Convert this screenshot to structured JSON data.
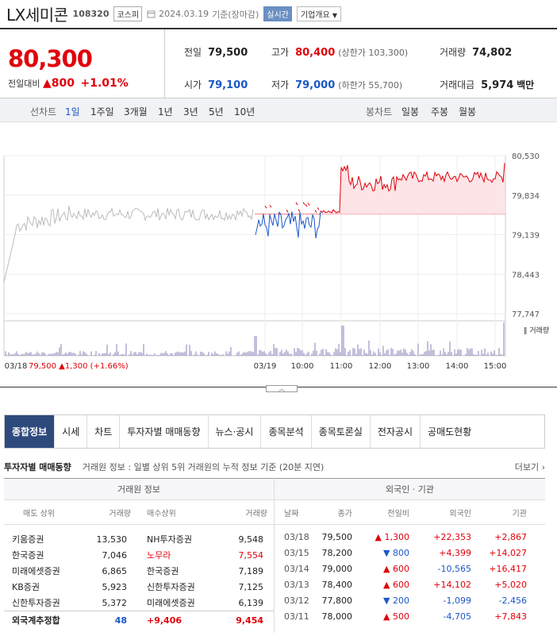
{
  "header": {
    "name": "LX세미콘",
    "code": "108320",
    "market": "코스피",
    "date": "2024.03.19",
    "basis": "기준(장마감)",
    "realtime": "실시간",
    "company_info": "기업개요"
  },
  "price": {
    "current": "80,300",
    "change_label": "전일대비",
    "change": "800",
    "change_pct": "+1.01%",
    "prev_label": "전일",
    "prev": "79,500",
    "high_label": "고가",
    "high": "80,400",
    "upper_limit": "(상한가 103,300)",
    "volume_label": "거래량",
    "volume": "74,802",
    "open_label": "시가",
    "open": "79,100",
    "low_label": "저가",
    "low": "79,000",
    "lower_limit": "(하한가 55,700)",
    "amount_label": "거래대금",
    "amount": "5,974",
    "amount_unit": "백만"
  },
  "toolbar": {
    "line_label": "선차트",
    "ranges": [
      "1일",
      "1주일",
      "3개월",
      "1년",
      "3년",
      "5년",
      "10년"
    ],
    "candle_label": "봉차트",
    "candles": [
      "일봉",
      "주봉",
      "월봉"
    ]
  },
  "chart_data": {
    "type": "line",
    "y_ticks": [
      "80,530",
      "79,834",
      "79,139",
      "78,443",
      "77,747"
    ],
    "ylim": [
      77747,
      80530
    ],
    "x_ticks": [
      "03/18",
      "03/19",
      "10:00",
      "11:00",
      "12:00",
      "13:00",
      "14:00",
      "15:00"
    ],
    "volume_label": "거래량",
    "prev_day": {
      "date": "03/18",
      "price": "79,500",
      "change": "▲1,300",
      "pct": "(+1.66%)"
    },
    "baseline": 79500,
    "colors": {
      "up": "#e0000a",
      "down": "#1a57c7",
      "prev": "#bbbbbb",
      "fill": "#fde4e6",
      "volume": "#8a7fb8"
    }
  },
  "tabs": [
    "종합정보",
    "시세",
    "차트",
    "투자자별 매매동향",
    "뉴스·공시",
    "종목분석",
    "종목토론실",
    "전자공시",
    "공매도현황"
  ],
  "investor": {
    "title": "투자자별 매매동향",
    "desc": "거래원 정보 : 일별 상위 5위 거래원의 누적 정보 기준 (20분 지연)",
    "more": "더보기",
    "broker_title": "거래원 정보",
    "broker_headers": [
      "매도 상위",
      "거래량",
      "매수상위",
      "거래량"
    ],
    "brokers": [
      [
        "키움증권",
        "13,530",
        "NH투자증권",
        "9,548"
      ],
      [
        "한국증권",
        "7,046",
        "노무라",
        "7,554"
      ],
      [
        "미래에셋증권",
        "6,865",
        "한국증권",
        "7,189"
      ],
      [
        "KB증권",
        "5,923",
        "신한투자증권",
        "7,125"
      ],
      [
        "신한투자증권",
        "5,372",
        "미래에셋증권",
        "6,139"
      ]
    ],
    "foreign_total": {
      "label": "외국계추정합",
      "sell": "48",
      "buy": "+9,406",
      "net": "9,454"
    },
    "foreign_title": "외국인 · 기관",
    "foreign_headers": [
      "날짜",
      "종가",
      "전일비",
      "외국인",
      "기관"
    ],
    "foreign": [
      [
        "03/18",
        "79,500",
        "▲ 1,300",
        "+22,353",
        "+2,867"
      ],
      [
        "03/15",
        "78,200",
        "▼ 800",
        "+4,399",
        "+14,027"
      ],
      [
        "03/14",
        "79,000",
        "▲ 600",
        "-10,565",
        "+16,417"
      ],
      [
        "03/13",
        "78,400",
        "▲ 600",
        "+14,102",
        "+5,020"
      ],
      [
        "03/12",
        "77,800",
        "▼ 200",
        "-1,099",
        "-2,456"
      ],
      [
        "03/11",
        "78,000",
        "▲ 500",
        "-4,705",
        "+7,843"
      ]
    ]
  }
}
